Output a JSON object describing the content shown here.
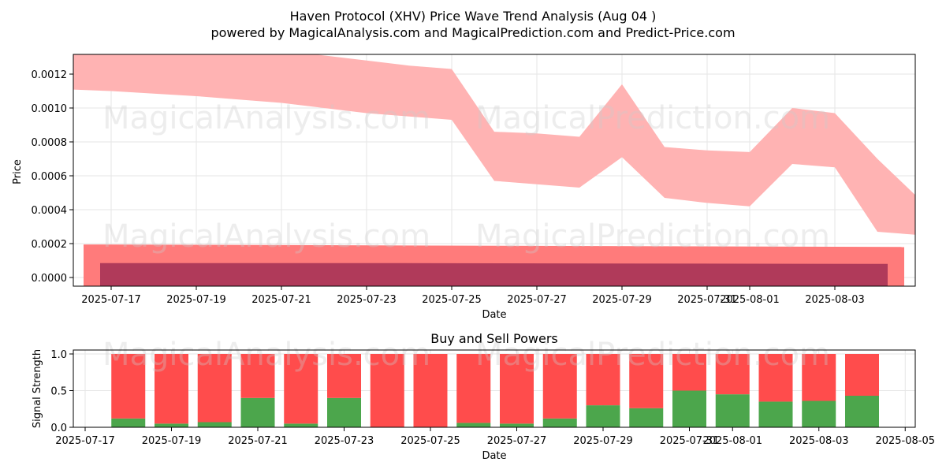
{
  "figure": {
    "title_line1": "Haven Protocol (XHV) Price Wave Trend Analysis (Aug 04 )",
    "title_line2": "powered by MagicalAnalysis.com and MagicalPrediction.com and Predict-Price.com",
    "watermarks": [
      "MagicalAnalysis.com",
      "MagicalPrediction.com"
    ],
    "colors": {
      "wave_band": "#ffb3b3",
      "lower_band": "#ff7b7b",
      "lower_inner_band": "#b03a5a",
      "buy": "#4ca64c",
      "sell": "#ff4c4c",
      "grid": "#e6e6e6"
    }
  },
  "chart_data": [
    {
      "type": "area",
      "xlabel": "Date",
      "ylabel": "Price",
      "xlim": [
        "2025-07-16",
        "2025-08-05"
      ],
      "ylim": [
        -5e-05,
        0.00132
      ],
      "x_ticks": [
        "2025-07-17",
        "2025-07-19",
        "2025-07-21",
        "2025-07-23",
        "2025-07-25",
        "2025-07-27",
        "2025-07-29",
        "2025-07-31",
        "2025-08-01",
        "2025-08-03"
      ],
      "y_ticks": [
        "0.0000",
        "0.0002",
        "0.0004",
        "0.0006",
        "0.0008",
        "0.0010",
        "0.0012"
      ],
      "grid": true,
      "series": [
        {
          "style": "wave band",
          "x": [
            "2025-07-16",
            "2025-07-17",
            "2025-07-19",
            "2025-07-21",
            "2025-07-23",
            "2025-07-24",
            "2025-07-25",
            "2025-07-26",
            "2025-07-27",
            "2025-07-28",
            "2025-07-29",
            "2025-07-30",
            "2025-07-31",
            "2025-08-01",
            "2025-08-02",
            "2025-08-03",
            "2025-08-04",
            "2025-08-05"
          ],
          "upper": [
            0.00135,
            0.00134,
            0.00134,
            0.00134,
            0.00128,
            0.00125,
            0.00123,
            0.00086,
            0.00085,
            0.00083,
            0.00114,
            0.00077,
            0.00075,
            0.00074,
            0.001,
            0.00097,
            0.0007,
            0.00046
          ],
          "lower": [
            0.00111,
            0.0011,
            0.00107,
            0.00103,
            0.00097,
            0.00095,
            0.00093,
            0.00057,
            0.00055,
            0.00053,
            0.00071,
            0.00047,
            0.00044,
            0.00042,
            0.00067,
            0.00065,
            0.00027,
            0.00025
          ]
        },
        {
          "style": "lower band",
          "x": [
            "2025-07-16",
            "2025-08-05"
          ],
          "upper": [
            0.000195,
            0.00018
          ],
          "lower": [
            -5e-05,
            -5e-05
          ]
        },
        {
          "style": "lower inner band",
          "x": [
            "2025-07-16",
            "2025-07-23",
            "2025-08-05"
          ],
          "upper": [
            8.5e-05,
            8.5e-05,
            8e-05
          ],
          "lower": [
            -5e-05,
            -5e-05,
            -5e-05
          ]
        }
      ]
    },
    {
      "type": "bar",
      "title": "Buy and Sell Powers",
      "xlabel": "Date",
      "ylabel": "Signal Strength",
      "xlim": [
        "2025-07-16",
        "2025-08-05"
      ],
      "ylim": [
        0,
        1.05
      ],
      "x_ticks": [
        "2025-07-17",
        "2025-07-19",
        "2025-07-21",
        "2025-07-23",
        "2025-07-25",
        "2025-07-27",
        "2025-07-29",
        "2025-07-31",
        "2025-08-01",
        "2025-08-03",
        "2025-08-05"
      ],
      "y_ticks": [
        "0.0",
        "0.5",
        "1.0"
      ],
      "grid": true,
      "categories": [
        "2025-07-18",
        "2025-07-19",
        "2025-07-20",
        "2025-07-21",
        "2025-07-22",
        "2025-07-23",
        "2025-07-24",
        "2025-07-25",
        "2025-07-26",
        "2025-07-27",
        "2025-07-28",
        "2025-07-29",
        "2025-07-30",
        "2025-07-31",
        "2025-08-01",
        "2025-08-02",
        "2025-08-03",
        "2025-08-04"
      ],
      "series": [
        {
          "values": [
            0.12,
            0.05,
            0.07,
            0.4,
            0.05,
            0.4,
            0.0,
            0.0,
            0.06,
            0.05,
            0.12,
            0.3,
            0.26,
            0.5,
            0.45,
            0.35,
            0.36,
            0.43
          ]
        },
        {
          "values": [
            0.88,
            0.95,
            0.93,
            0.6,
            0.95,
            0.6,
            1.0,
            1.0,
            0.94,
            0.95,
            0.88,
            0.7,
            0.74,
            0.5,
            0.55,
            0.65,
            0.64,
            0.57
          ]
        }
      ]
    }
  ]
}
